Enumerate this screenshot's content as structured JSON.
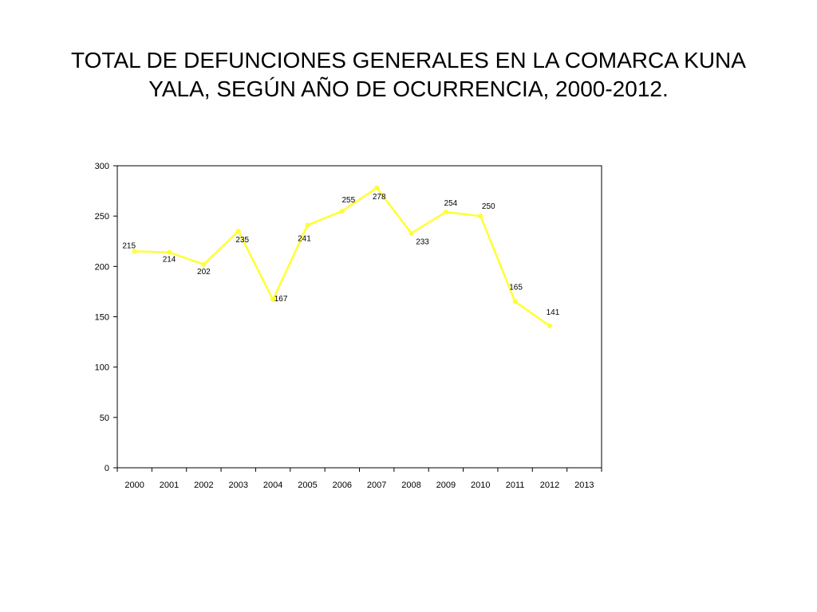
{
  "slide": {
    "title_line1": "TOTAL DE DEFUNCIONES GENERALES EN LA COMARCA KUNA",
    "title_line2": "YALA, SEGÚN AÑO DE OCURRENCIA, 2000-2012."
  },
  "chart_data": {
    "type": "line",
    "title": "TOTAL DE DEFUNCIONES GENERALES EN LA COMARCA KUNA YALA, SEGÚN AÑO DE OCURRENCIA, 2000-2012.",
    "xlabel": "",
    "ylabel": "",
    "categories": [
      "2000",
      "2001",
      "2002",
      "2003",
      "2004",
      "2005",
      "2006",
      "2007",
      "2008",
      "2009",
      "2010",
      "2011",
      "2012",
      "2013"
    ],
    "series": [
      {
        "values": [
          215,
          214,
          202,
          235,
          167,
          241,
          255,
          278,
          233,
          254,
          250,
          165,
          141,
          null
        ],
        "color": "#ffff33"
      }
    ],
    "ylim": [
      0,
      300
    ],
    "yticks": [
      0,
      50,
      100,
      150,
      200,
      250,
      300
    ],
    "data_labels": [
      "215",
      "214",
      "202",
      "235",
      "167",
      "241",
      "255",
      "278",
      "233",
      "254",
      "250",
      "165",
      "141"
    ],
    "grid": false,
    "legend": "none"
  }
}
